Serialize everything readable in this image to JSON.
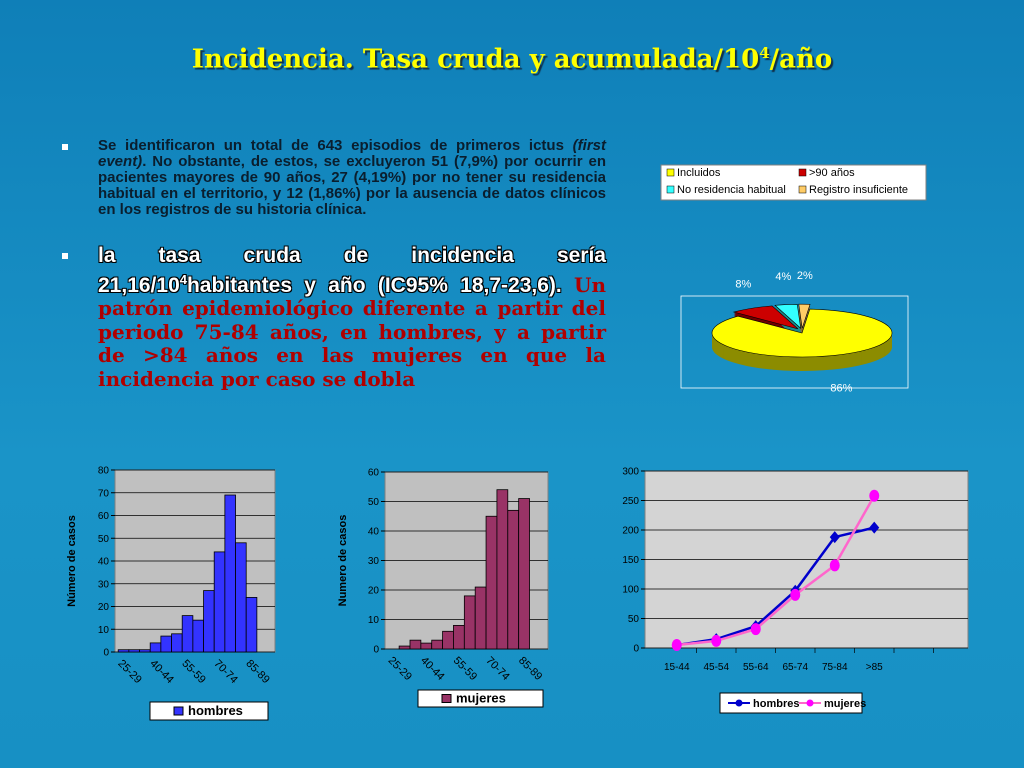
{
  "title": {
    "main": "Incidencia. Tasa cruda y acumulada/10",
    "sup": "4",
    "end": "/año"
  },
  "bullets": [
    {
      "parts": [
        "Se identificaron un total de 643 episodios de primeros ictus",
        "(first event)",
        ". No obstante, de estos, se excluyeron 51 (7,9%) por ocurrir en pacientes mayores de 90 años, 27 (4,19%) por no tener su residencia habitual en el territorio, y 12 (1,86%) por la ausencia de datos clínicos en los registros de su historia clínica."
      ]
    },
    {
      "parts": [
        "la tasa cruda de incidencia sería 21,16/10",
        "4",
        "habitantes y año (IC95% 18,7-23,6).",
        "Un patrón epidemiológico diferente a partir del periodo 75-84 años, en hombres, y a partir de >84 años en las mujeres en que la incidencia por caso se dobla"
      ]
    }
  ],
  "chart_data": [
    {
      "type": "pie",
      "categories": [
        "Incluidos",
        ">90 años",
        "No residencia habitual",
        "Registro insuficiente"
      ],
      "values": [
        86,
        8,
        4,
        2
      ],
      "value_labels": [
        "86%",
        "8%",
        "4%",
        "2%"
      ],
      "colors": [
        "#ffff00",
        "#cc0000",
        "#33ffff",
        "#ffcc66"
      ]
    },
    {
      "type": "bar",
      "ylabel": "Número de casos",
      "categories": [
        "25-29",
        null,
        null,
        "40-44",
        null,
        null,
        "55-59",
        null,
        null,
        "70-74",
        null,
        null,
        "85-89"
      ],
      "series": [
        {
          "name": "hombres",
          "color": "#3333ff",
          "values": [
            1,
            1,
            1,
            4,
            7,
            8,
            16,
            14,
            27,
            44,
            69,
            48,
            24
          ]
        }
      ],
      "ylim": [
        0,
        80
      ],
      "yticks": [
        0,
        10,
        20,
        30,
        40,
        50,
        60,
        70,
        80
      ],
      "grid": true
    },
    {
      "type": "bar",
      "ylabel": "Numero de casos",
      "categories": [
        "25-29",
        null,
        null,
        "40-44",
        null,
        null,
        "55-59",
        null,
        null,
        "70-74",
        null,
        null,
        "85-89"
      ],
      "series": [
        {
          "name": "mujeres",
          "color": "#993366",
          "values": [
            0,
            1,
            3,
            2,
            3,
            6,
            8,
            18,
            21,
            45,
            54,
            47,
            51
          ]
        }
      ],
      "ylim": [
        0,
        60
      ],
      "yticks": [
        0,
        10,
        20,
        30,
        40,
        50,
        60
      ],
      "grid": true
    },
    {
      "type": "line",
      "categories": [
        "15-44",
        "45-54",
        "55-64",
        "65-74",
        "75-84",
        ">85"
      ],
      "series": [
        {
          "name": "hombres",
          "color": "#0000cc",
          "marker": "diamond",
          "values": [
            5,
            15,
            37,
            97,
            188,
            204
          ]
        },
        {
          "name": "mujeres",
          "color": "#ff66cc",
          "marker": "circle",
          "marker_color": "#ff00ff",
          "values": [
            5,
            12,
            32,
            90,
            140,
            258
          ]
        }
      ],
      "ylim": [
        0,
        300
      ],
      "yticks": [
        0,
        50,
        100,
        150,
        200,
        250,
        300
      ],
      "grid": true
    }
  ]
}
